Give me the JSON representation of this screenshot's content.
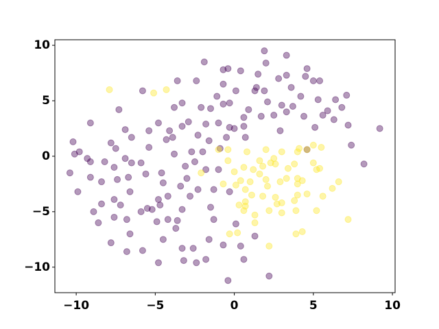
{
  "chart_data": {
    "type": "scatter",
    "xlim": [
      -11.35,
      10.17
    ],
    "ylim": [
      -12.3,
      10.5
    ],
    "xticks": [
      {
        "value": -10,
        "label": "−10"
      },
      {
        "value": -5,
        "label": "−5"
      },
      0,
      5,
      10
    ],
    "yticks": [
      {
        "value": -10,
        "label": "−10"
      },
      {
        "value": -5,
        "label": "−5"
      },
      0,
      5,
      10
    ],
    "opacity": 0.4,
    "series": [
      {
        "color": "#440154",
        "x": [
          1.9,
          3.3,
          -0.4,
          -0.7,
          2.0,
          4.6,
          4.5,
          5.4,
          5.0,
          1.5,
          0.4,
          -1.9,
          -3.6,
          -0.7,
          0.1,
          1.4,
          3.3,
          2.8,
          1.9,
          3.6,
          4.2,
          6.4,
          7.1,
          5.3,
          3.7,
          3.0,
          2.1,
          0.9,
          2.5,
          1.7,
          4.4,
          3.3,
          5.1,
          5.9,
          6.3,
          6.8,
          7.2,
          7.4,
          8.2,
          9.2,
          2.9,
          0.6,
          0.6,
          -0.3,
          -0.7,
          -1.5,
          -1.8,
          -2.3,
          -1.0,
          0.0,
          0.7,
          -0.5,
          -2.7,
          -2.5,
          -2.0,
          -1.6,
          -0.9,
          -1.8,
          -3.1,
          -3.4,
          -2.8,
          -3.3,
          -2.3,
          -1.0,
          -1.3,
          -1.5,
          -1.3,
          0.1,
          -0.3,
          -0.7,
          0.4,
          0.6,
          -0.4,
          2.2,
          1.3,
          -2.4,
          -3.2,
          -1.8,
          -2.6,
          -4.5,
          -4.5,
          -4.2,
          -4.7,
          -4.9,
          -4.2,
          -5.9,
          -5.5,
          -6.6,
          -4.8,
          -5.6,
          -5.9,
          -6.5,
          -7.6,
          -7.4,
          -6.7,
          -8.2,
          -9.1,
          -9.3,
          -10.1,
          -10.2,
          -9.8,
          -10.4,
          -9.9,
          -9.1,
          -8.4,
          -8.4,
          -8.9,
          -8.6,
          -7.6,
          -7.2,
          -7.6,
          -6.6,
          -6.8,
          -5.2,
          -3.6,
          -3.3,
          -4.6,
          -4.3,
          -4.8,
          -5.4,
          -5.4,
          -6.5,
          -6.9,
          -6.9,
          -7.8,
          -7.5,
          -3.3,
          -2.1,
          -3.8,
          -4.1,
          -2.9,
          -3.8,
          -3.0,
          -7.3,
          -9.1,
          -5.8,
          -2.4,
          5.6,
          4.6,
          1.3,
          -0.3,
          -1.1,
          -3.3,
          -3.9,
          -3.7,
          -1.6,
          -7.8,
          -5.8,
          -4.8,
          -6.8
        ],
        "values": [
          9.5,
          9.1,
          7.9,
          7.8,
          8.4,
          7.9,
          7.2,
          6.8,
          6.8,
          7.4,
          7.7,
          8.5,
          6.8,
          6.5,
          5.9,
          6.2,
          7.3,
          7.0,
          5.9,
          6.2,
          5.4,
          5.1,
          5.5,
          5.1,
          4.5,
          4.6,
          4.9,
          4.2,
          3.7,
          3.6,
          3.6,
          4.0,
          2.6,
          4.1,
          3.3,
          4.4,
          2.8,
          1.0,
          -0.7,
          2.5,
          2.3,
          3.5,
          2.7,
          2.6,
          4.7,
          4.3,
          2.9,
          1.9,
          3.0,
          2.5,
          1.7,
          1.7,
          0.4,
          -0.5,
          0.4,
          1.4,
          0.7,
          -1.2,
          -0.9,
          -2.7,
          -3.6,
          -4.8,
          -3.0,
          -1.2,
          -3.0,
          -4.6,
          -5.7,
          -6.1,
          -3.2,
          -8.0,
          -8.1,
          -9.3,
          -11.2,
          -10.8,
          -7.2,
          -9.6,
          -9.4,
          -9.3,
          -8.3,
          -7.5,
          -2.4,
          -3.6,
          -4.4,
          -5.9,
          -5.7,
          -5.0,
          -4.7,
          -3.2,
          -3.9,
          -1.6,
          -0.6,
          -0.6,
          -1.0,
          -2.1,
          -1.9,
          -0.5,
          -0.5,
          -0.2,
          0.2,
          1.3,
          0.4,
          -1.5,
          -3.2,
          -1.9,
          -2.3,
          -4.3,
          -5.0,
          -6.0,
          -3.9,
          -4.4,
          -5.5,
          -7.0,
          -5.7,
          -4.8,
          -5.8,
          -8.3,
          -1.5,
          1.5,
          3.0,
          2.3,
          0.8,
          1.7,
          2.4,
          -0.2,
          1.2,
          0.7,
          2.7,
          4.4,
          4.4,
          2.3,
          3.1,
          0.2,
          -2.0,
          4.2,
          3.0,
          5.9,
          6.8,
          3.7,
          0.6,
          5.9,
          4.8,
          5.4,
          4.8,
          1.7,
          -6.5,
          -7.5,
          -7.8,
          -8.5,
          -9.6,
          -8.6
        ]
      },
      {
        "color": "#fde725",
        "x": [
          -7.9,
          -5.1,
          -4.3,
          -1.0,
          -0.4,
          0.8,
          2.0,
          3.0,
          4.0,
          4.1,
          4.6,
          5.0,
          5.5,
          2.5,
          1.6,
          2.3,
          1.2,
          1.8,
          2.6,
          0.6,
          -0.4,
          0.0,
          -2.1,
          -0.7,
          0.1,
          0.4,
          0.7,
          1.0,
          1.6,
          2.0,
          2.1,
          3.3,
          2.9,
          4.0,
          4.0,
          4.3,
          5.2,
          5.4,
          5.0,
          6.2,
          6.6,
          4.0,
          4.6,
          3.0,
          2.7,
          2.2,
          1.1,
          1.8,
          0.7,
          0.7,
          0.6,
          1.3,
          1.3,
          -0.3,
          0.2,
          2.2,
          3.0,
          3.9,
          4.3,
          3.9,
          5.6,
          7.2,
          5.2,
          3.8,
          0.3,
          2.6,
          3.8,
          3.4
        ],
        "values": [
          6.0,
          5.7,
          6.0,
          0.6,
          0.6,
          0.4,
          0.6,
          0.4,
          0.4,
          0.7,
          0.6,
          1.0,
          0.8,
          -0.2,
          -0.4,
          -0.6,
          -1.2,
          -0.9,
          -0.7,
          -1.0,
          -0.4,
          -1.4,
          -1.5,
          -2.5,
          -2.6,
          -2.2,
          -3.0,
          -2.3,
          -1.6,
          -2.1,
          -2.7,
          -2.0,
          -2.3,
          -2.0,
          -2.5,
          -2.2,
          -1.2,
          -1.1,
          -0.6,
          -2.9,
          -2.3,
          -3.5,
          -3.4,
          -4.2,
          -4.3,
          -4.9,
          -3.5,
          -3.6,
          -4.1,
          -4.5,
          -4.9,
          -5.3,
          -6.0,
          -7.0,
          -6.9,
          -8.1,
          -5.1,
          -4.9,
          -6.8,
          -7.0,
          -3.6,
          -5.7,
          -4.9,
          -4.0,
          -4.4,
          -3.7,
          -0.7,
          -1.1
        ]
      }
    ]
  }
}
